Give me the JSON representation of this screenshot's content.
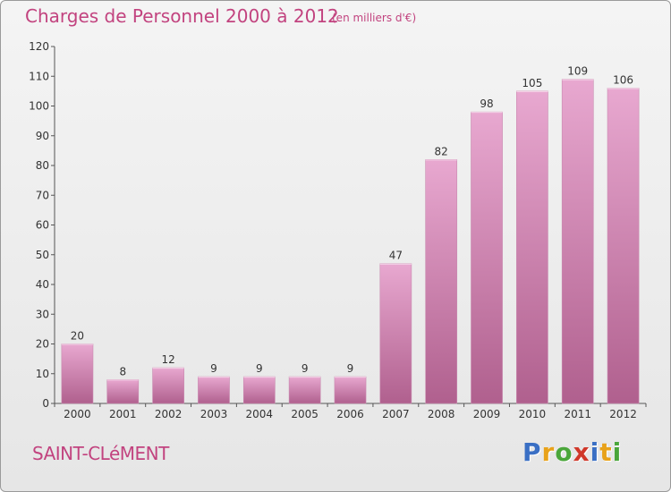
{
  "header": {
    "title": "Charges de Personnel 2000 à 2012",
    "subtitle": "(en milliers d'€)"
  },
  "footer": {
    "commune": "SAINT-CLéMENT",
    "logo_letters": [
      "P",
      "r",
      "o",
      "x",
      "i",
      "t",
      "i"
    ]
  },
  "colors": {
    "title": "#c2437f",
    "bar_top": "#e8a8d0",
    "bar_bottom": "#b0608e",
    "logo": [
      "#3a6fc4",
      "#e8a21a",
      "#4aa63a",
      "#d0382a",
      "#3a6fc4",
      "#e8a21a",
      "#4aa63a"
    ]
  },
  "chart_data": {
    "type": "bar",
    "categories": [
      "2000",
      "2001",
      "2002",
      "2003",
      "2004",
      "2005",
      "2006",
      "2007",
      "2008",
      "2009",
      "2010",
      "2011",
      "2012"
    ],
    "values": [
      20,
      8,
      12,
      9,
      9,
      9,
      9,
      47,
      82,
      98,
      105,
      109,
      106
    ],
    "title": "Charges de Personnel 2000 à 2012",
    "subtitle": "(en milliers d'€)",
    "xlabel": "",
    "ylabel": "",
    "ylim": [
      0,
      120
    ],
    "yticks": [
      0,
      10,
      20,
      30,
      40,
      50,
      60,
      70,
      80,
      90,
      100,
      110,
      120
    ],
    "grid": false,
    "data_labels": true
  }
}
